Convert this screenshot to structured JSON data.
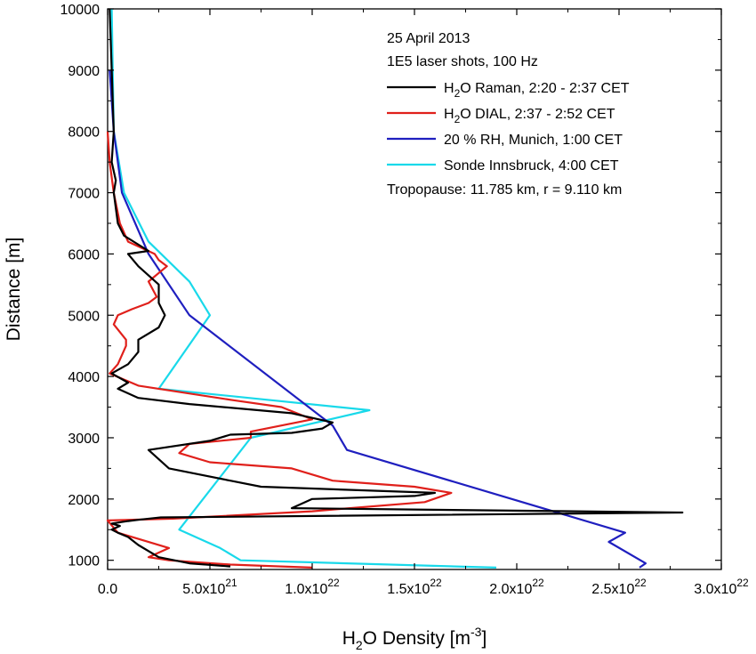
{
  "chart_data": {
    "type": "line",
    "xlabel_parts": [
      "H",
      "2",
      "O Density [m",
      "-3",
      "]"
    ],
    "ylabel": "Distance [m]",
    "xlim": [
      0,
      3e+22
    ],
    "ylim": [
      850,
      10000
    ],
    "xticks": [
      {
        "value": 0,
        "mantissa": "0.0"
      },
      {
        "value": 5e+21,
        "mantissa": "5.0x10",
        "exp": "21"
      },
      {
        "value": 1e+22,
        "mantissa": "1.0x10",
        "exp": "22"
      },
      {
        "value": 1.5e+22,
        "mantissa": "1.5x10",
        "exp": "22"
      },
      {
        "value": 2e+22,
        "mantissa": "2.0x10",
        "exp": "22"
      },
      {
        "value": 2.5e+22,
        "mantissa": "2.5x10",
        "exp": "22"
      },
      {
        "value": 3e+22,
        "mantissa": "3.0x10",
        "exp": "22"
      }
    ],
    "yticks": [
      1000,
      2000,
      3000,
      4000,
      5000,
      6000,
      7000,
      8000,
      9000,
      10000
    ],
    "annotations": [
      "25 April 2013",
      "1E5 laser shots, 100 Hz",
      "Tropopause: 11.785 km, r = 9.110 km"
    ],
    "legend_position": "top-right",
    "series": [
      {
        "name": "H2O Raman, 2:20 - 2:37 CET",
        "name_parts": [
          "H",
          "2",
          "O Raman, 2:20 - 2:37 CET"
        ],
        "color": "#000000",
        "x": [
          6e+21,
          4e+21,
          2.5e+21,
          1.5e+21,
          1e+21,
          5e+20,
          2e+20,
          6e+20,
          2e+20,
          1e+21,
          1.5e+21,
          2.6e+21,
          2.81e+22,
          9e+21,
          1e+22,
          1.5e+22,
          1.6e+22,
          7.5e+21,
          6e+21,
          3e+21,
          2e+21,
          5e+21,
          6e+21,
          9e+21,
          1.05e+22,
          1.1e+22,
          9e+21,
          4e+21,
          1.5e+21,
          5e+20,
          1e+21,
          2e+20,
          1e+21,
          1.5e+21,
          1.5e+21,
          2.5e+21,
          2.8e+21,
          2.5e+21,
          2.5e+21,
          1.5e+21,
          1e+21,
          2e+21,
          8e+20,
          5e+20,
          3e+20,
          4e+20,
          2e+20,
          3e+20,
          2e+20,
          1e+20
        ],
        "y": [
          900,
          950,
          1050,
          1250,
          1380,
          1450,
          1500,
          1560,
          1600,
          1640,
          1660,
          1700,
          1780,
          1850,
          2000,
          2050,
          2100,
          2200,
          2300,
          2500,
          2800,
          2950,
          3050,
          3080,
          3150,
          3250,
          3400,
          3550,
          3650,
          3800,
          3900,
          4050,
          4200,
          4400,
          4600,
          4800,
          5000,
          5200,
          5500,
          5800,
          6000,
          6050,
          6300,
          6500,
          7000,
          7200,
          7500,
          8000,
          9000,
          10000
        ]
      },
      {
        "name": "H2O DIAL, 2:37 - 2:52 CET",
        "name_parts": [
          "H",
          "2",
          "O DIAL, 2:37 - 2:52 CET"
        ],
        "color": "#e0201b",
        "x": [
          1e+22,
          6e+21,
          3e+21,
          2e+21,
          3e+21,
          5e+20,
          0.0,
          3.2e+21,
          1e+22,
          1.55e+22,
          1.68e+22,
          1.5e+22,
          1.1e+22,
          9e+21,
          5e+21,
          3.5e+21,
          4e+21,
          7e+21,
          7e+21,
          1e+22,
          8.5e+21,
          6e+21,
          1.5e+21,
          1e+20,
          5e+20,
          9e+20,
          9e+20,
          3e+20,
          5e+20,
          1.2e+21,
          2e+21,
          2.4e+21,
          2e+21,
          2.9e+21,
          2.5e+21,
          2.3e+21,
          1e+21,
          6e+20,
          3e+20,
          1e+20,
          0.0
        ],
        "y": [
          880,
          930,
          1000,
          1050,
          1200,
          1450,
          1650,
          1680,
          1800,
          1950,
          2100,
          2200,
          2300,
          2500,
          2600,
          2750,
          2900,
          3000,
          3100,
          3300,
          3500,
          3620,
          3850,
          4050,
          4200,
          4500,
          4600,
          4850,
          5000,
          5100,
          5200,
          5300,
          5550,
          5800,
          5900,
          6000,
          6200,
          6500,
          7000,
          7500,
          8000
        ]
      },
      {
        "name": "20 % RH, Munich, 1:00 CET",
        "name_parts": [
          "",
          "",
          "20 % RH, Munich, 1:00 CET"
        ],
        "color": "#1f1fbf",
        "x": [
          2.6e+22,
          2.63e+22,
          2.45e+22,
          2.53e+22,
          1.17e+22,
          1.1e+22,
          4e+21,
          2e+21,
          7e+20,
          3e+20,
          1e+20
        ],
        "y": [
          880,
          950,
          1300,
          1450,
          2800,
          3200,
          5000,
          6000,
          7000,
          8000,
          9000
        ]
      },
      {
        "name": "Sonde Innsbruck, 4:00 CET",
        "name_parts": [
          "",
          "",
          "Sonde Innsbruck, 4:00 CET"
        ],
        "color": "#19d9ea",
        "x": [
          1.9e+22,
          6.5e+21,
          5.5e+21,
          3.5e+21,
          7e+21,
          1.28e+22,
          2.5e+21,
          5e+21,
          4e+21,
          2e+21,
          8e+20,
          3e+20,
          2e+20
        ],
        "y": [
          880,
          1000,
          1200,
          1500,
          3000,
          3450,
          3800,
          5000,
          5550,
          6200,
          7000,
          8000,
          10000
        ]
      }
    ]
  }
}
